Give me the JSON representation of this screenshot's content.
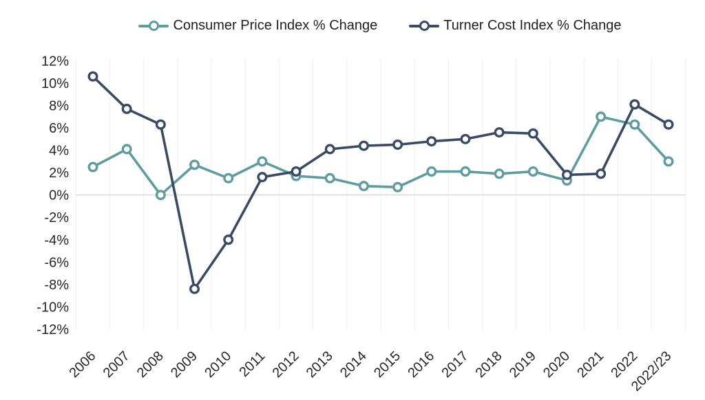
{
  "chart_data": {
    "type": "line",
    "title": "",
    "xlabel": "",
    "ylabel": "",
    "categories": [
      "2006",
      "2007",
      "2008",
      "2009",
      "2010",
      "2011",
      "2012",
      "2013",
      "2014",
      "2015",
      "2016",
      "2017",
      "2018",
      "2019",
      "2020",
      "2021",
      "2022",
      "2022/23"
    ],
    "series": [
      {
        "name": "Consumer Price Index % Change",
        "color": "#5F9CA0",
        "marker": "open-circle",
        "values": [
          2.5,
          4.1,
          0.0,
          2.7,
          1.5,
          3.0,
          1.7,
          1.5,
          0.8,
          0.7,
          2.1,
          2.1,
          1.9,
          2.1,
          1.3,
          7.0,
          6.3,
          3.0
        ]
      },
      {
        "name": "Turner Cost Index % Change",
        "color": "#394A63",
        "marker": "open-circle",
        "values": [
          10.6,
          7.7,
          6.3,
          -8.4,
          -4.0,
          1.6,
          2.1,
          4.1,
          4.4,
          4.5,
          4.8,
          5.0,
          5.6,
          5.5,
          1.8,
          1.9,
          8.1,
          6.3
        ]
      }
    ],
    "ylim": [
      -12,
      12
    ],
    "ytick_step": 2,
    "y_tick_labels": [
      "12%",
      "10%",
      "8%",
      "6%",
      "4%",
      "2%",
      "0%",
      "-2%",
      "-4%",
      "-6%",
      "-8%",
      "-10%",
      "-12%"
    ],
    "grid": {
      "vertical": true,
      "horizontal": false,
      "zero_line": true
    },
    "legend_position": "top-center",
    "colors": {
      "grid_vertical": "#F2F2F2",
      "zero_line": "#D9D9D9",
      "axis_text": "#262626",
      "background": "#FFFFFF"
    }
  }
}
